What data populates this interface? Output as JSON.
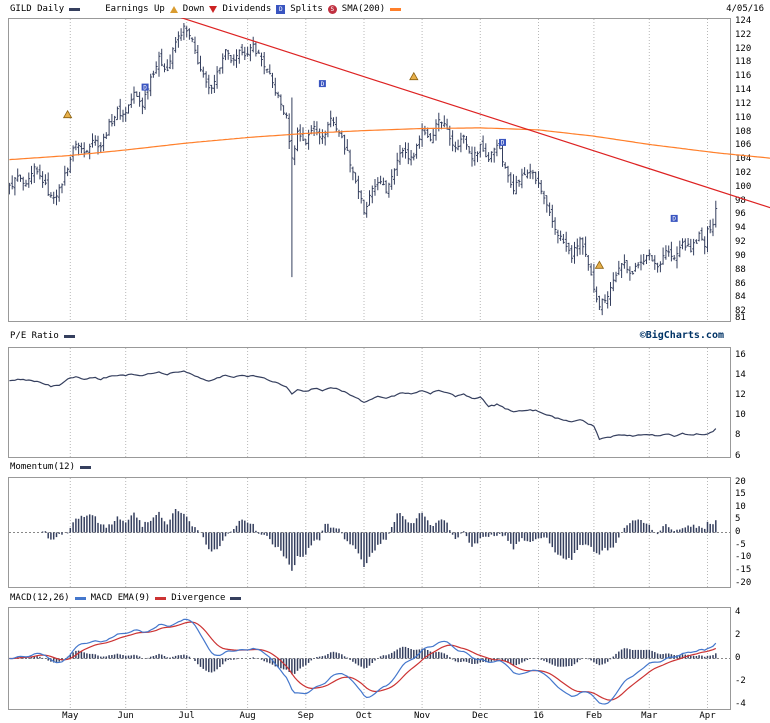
{
  "header": {
    "symbol": "GILD Daily",
    "legend_earnings_up": "Earnings Up",
    "legend_down": "Down",
    "legend_dividends": "Dividends",
    "legend_dividends_icon": "D",
    "legend_splits": "Splits",
    "legend_splits_icon": "S",
    "legend_sma": "SMA(200)",
    "date": "4/05/16"
  },
  "copyright": "©BigCharts.com",
  "panel_titles": {
    "pe": "P/E Ratio",
    "momentum": "Momentum(12)",
    "macd": "MACD(12,26)",
    "macd_ema": "MACD EMA(9)",
    "divergence": "Divergence"
  },
  "colors": {
    "bars": "#353f5e",
    "sma": "#ff7f2a",
    "trendline": "#dd2222",
    "macd_line": "#4477cc",
    "macd_signal": "#cc3333",
    "grid": "#b8b8b8",
    "zero_line": "#888888",
    "border": "#999999",
    "dividend_marker": "#3a55c0",
    "earnings_marker": "#e8b04a",
    "earnings_marker_edge": "#8a6010"
  },
  "chart_data": {
    "type": "multi-panel daily stock chart (OHLC bars + indicator subcharts)",
    "symbol": "GILD",
    "interval": "Daily",
    "as_of": "4/05/16",
    "n_slots": 261,
    "months": [
      {
        "label": "May",
        "i": 22
      },
      {
        "label": "Jun",
        "i": 42
      },
      {
        "label": "Jul",
        "i": 64
      },
      {
        "label": "Aug",
        "i": 86
      },
      {
        "label": "Sep",
        "i": 107
      },
      {
        "label": "Oct",
        "i": 128
      },
      {
        "label": "Nov",
        "i": 149
      },
      {
        "label": "Dec",
        "i": 170
      },
      {
        "label": "16",
        "i": 191
      },
      {
        "label": "Feb",
        "i": 211
      },
      {
        "label": "Mar",
        "i": 231
      },
      {
        "label": "Apr",
        "i": 252
      }
    ],
    "price": {
      "type": "ohlc",
      "ylim": [
        80.5,
        124.5
      ],
      "yticks": [
        124,
        122,
        120,
        118,
        116,
        114,
        112,
        110,
        108,
        106,
        104,
        102,
        100,
        98,
        96,
        94,
        92,
        90,
        88,
        86,
        84,
        82,
        81
      ],
      "close_keypoints": [
        [
          0,
          100
        ],
        [
          3,
          101.5
        ],
        [
          6,
          100
        ],
        [
          9,
          102.5
        ],
        [
          12,
          101
        ],
        [
          15,
          98.5
        ],
        [
          18,
          99.5
        ],
        [
          21,
          103
        ],
        [
          24,
          106.5
        ],
        [
          27,
          105
        ],
        [
          30,
          107
        ],
        [
          33,
          106
        ],
        [
          36,
          109
        ],
        [
          39,
          111
        ],
        [
          41,
          110.5
        ],
        [
          42,
          111
        ],
        [
          45,
          113.5
        ],
        [
          48,
          112
        ],
        [
          51,
          116
        ],
        [
          54,
          118.5
        ],
        [
          57,
          117
        ],
        [
          60,
          121
        ],
        [
          63,
          123
        ],
        [
          64,
          122.5
        ],
        [
          66,
          121
        ],
        [
          69,
          117
        ],
        [
          72,
          114
        ],
        [
          75,
          116.5
        ],
        [
          78,
          119.5
        ],
        [
          81,
          118
        ],
        [
          84,
          120
        ],
        [
          86,
          119
        ],
        [
          88,
          120.5
        ],
        [
          91,
          118.5
        ],
        [
          94,
          116
        ],
        [
          97,
          113
        ],
        [
          100,
          110
        ],
        [
          102,
          104
        ],
        [
          104,
          108
        ],
        [
          107,
          106.5
        ],
        [
          110,
          109
        ],
        [
          113,
          107
        ],
        [
          116,
          110
        ],
        [
          119,
          108
        ],
        [
          122,
          105
        ],
        [
          125,
          101
        ],
        [
          127,
          98
        ],
        [
          128,
          96
        ],
        [
          130,
          98.5
        ],
        [
          133,
          101
        ],
        [
          136,
          99.5
        ],
        [
          139,
          103
        ],
        [
          142,
          105.5
        ],
        [
          145,
          104
        ],
        [
          148,
          107
        ],
        [
          149,
          108.5
        ],
        [
          152,
          107
        ],
        [
          155,
          110
        ],
        [
          158,
          108.5
        ],
        [
          161,
          105.5
        ],
        [
          164,
          107.5
        ],
        [
          167,
          104.5
        ],
        [
          169,
          105
        ],
        [
          170,
          106
        ],
        [
          173,
          104
        ],
        [
          176,
          106.5
        ],
        [
          179,
          102.5
        ],
        [
          182,
          100
        ],
        [
          185,
          101.5
        ],
        [
          188,
          102.5
        ],
        [
          190,
          101
        ],
        [
          191,
          100.5
        ],
        [
          194,
          97
        ],
        [
          197,
          94
        ],
        [
          200,
          92
        ],
        [
          203,
          90
        ],
        [
          206,
          92.5
        ],
        [
          209,
          88.5
        ],
        [
          211,
          85.5
        ],
        [
          213,
          83
        ],
        [
          216,
          84.5
        ],
        [
          219,
          87.5
        ],
        [
          222,
          89
        ],
        [
          225,
          87.5
        ],
        [
          228,
          89.5
        ],
        [
          231,
          90
        ],
        [
          234,
          88.5
        ],
        [
          237,
          91
        ],
        [
          240,
          89.5
        ],
        [
          243,
          92
        ],
        [
          246,
          91
        ],
        [
          249,
          93
        ],
        [
          251,
          91.5
        ],
        [
          252,
          93.5
        ],
        [
          254,
          95
        ],
        [
          255,
          97
        ]
      ],
      "sma200_keypoints": [
        [
          0,
          104
        ],
        [
          22,
          104.6
        ],
        [
          42,
          105.4
        ],
        [
          64,
          106.4
        ],
        [
          86,
          107.2
        ],
        [
          107,
          107.8
        ],
        [
          128,
          108.2
        ],
        [
          149,
          108.5
        ],
        [
          170,
          108.6
        ],
        [
          191,
          108.3
        ],
        [
          211,
          107.4
        ],
        [
          231,
          106.2
        ],
        [
          255,
          105
        ],
        [
          275,
          104.2
        ]
      ],
      "trendline": {
        "from": [
          57,
          125.2
        ],
        "to": [
          275,
          97
        ]
      },
      "crash_bar": {
        "i": 102,
        "high": 113,
        "low": 87
      },
      "dividends": [
        {
          "i": 49,
          "price": 114.5
        },
        {
          "i": 113,
          "price": 115
        },
        {
          "i": 178,
          "price": 106.5
        },
        {
          "i": 240,
          "price": 95.5
        }
      ],
      "earnings_up": [
        {
          "i": 21,
          "price": 110.5
        },
        {
          "i": 146,
          "price": 116
        },
        {
          "i": 213,
          "price": 88.7
        }
      ]
    },
    "pe_ratio": {
      "type": "line",
      "ylim": [
        5.8,
        16.8
      ],
      "yticks": [
        16,
        14,
        12,
        10,
        8,
        6
      ],
      "keypoints": [
        [
          0,
          13.4
        ],
        [
          4,
          13.6
        ],
        [
          8,
          13.5
        ],
        [
          12,
          13.2
        ],
        [
          15,
          12.9
        ],
        [
          18,
          13.0
        ],
        [
          21,
          13.6
        ],
        [
          24,
          13.9
        ],
        [
          27,
          13.6
        ],
        [
          30,
          13.8
        ],
        [
          33,
          13.6
        ],
        [
          36,
          13.9
        ],
        [
          40,
          14.0
        ],
        [
          42,
          14.0
        ],
        [
          45,
          14.1
        ],
        [
          48,
          13.9
        ],
        [
          51,
          14.2
        ],
        [
          54,
          14.3
        ],
        [
          57,
          14.1
        ],
        [
          60,
          14.3
        ],
        [
          63,
          14.4
        ],
        [
          64,
          14.3
        ],
        [
          66,
          14.1
        ],
        [
          69,
          13.7
        ],
        [
          72,
          13.4
        ],
        [
          75,
          13.7
        ],
        [
          78,
          14.0
        ],
        [
          81,
          13.8
        ],
        [
          84,
          14.0
        ],
        [
          86,
          13.9
        ],
        [
          88,
          14.0
        ],
        [
          91,
          13.8
        ],
        [
          94,
          13.5
        ],
        [
          97,
          13.2
        ],
        [
          100,
          12.9
        ],
        [
          102,
          12.1
        ],
        [
          104,
          12.6
        ],
        [
          107,
          12.4
        ],
        [
          110,
          12.7
        ],
        [
          113,
          12.5
        ],
        [
          116,
          12.8
        ],
        [
          119,
          12.6
        ],
        [
          122,
          12.2
        ],
        [
          125,
          11.8
        ],
        [
          127,
          11.5
        ],
        [
          128,
          11.3
        ],
        [
          130,
          11.6
        ],
        [
          133,
          11.9
        ],
        [
          136,
          11.7
        ],
        [
          139,
          12.0
        ],
        [
          142,
          12.3
        ],
        [
          145,
          12.1
        ],
        [
          148,
          12.4
        ],
        [
          149,
          12.5
        ],
        [
          152,
          12.2
        ],
        [
          155,
          12.5
        ],
        [
          158,
          12.3
        ],
        [
          161,
          11.9
        ],
        [
          164,
          12.1
        ],
        [
          167,
          11.7
        ],
        [
          169,
          11.8
        ],
        [
          170,
          11.9
        ],
        [
          173,
          10.9
        ],
        [
          176,
          11.1
        ],
        [
          179,
          10.7
        ],
        [
          182,
          10.4
        ],
        [
          185,
          10.5
        ],
        [
          188,
          10.6
        ],
        [
          190,
          10.5
        ],
        [
          191,
          10.4
        ],
        [
          194,
          10.1
        ],
        [
          197,
          9.8
        ],
        [
          200,
          9.6
        ],
        [
          203,
          9.4
        ],
        [
          206,
          9.6
        ],
        [
          209,
          9.2
        ],
        [
          211,
          8.9
        ],
        [
          213,
          7.7
        ],
        [
          216,
          7.8
        ],
        [
          219,
          8.0
        ],
        [
          222,
          8.1
        ],
        [
          225,
          8.0
        ],
        [
          228,
          8.1
        ],
        [
          231,
          8.1
        ],
        [
          234,
          8.0
        ],
        [
          237,
          8.2
        ],
        [
          240,
          8.0
        ],
        [
          243,
          8.2
        ],
        [
          246,
          8.1
        ],
        [
          249,
          8.2
        ],
        [
          251,
          8.1
        ],
        [
          252,
          8.2
        ],
        [
          254,
          8.4
        ],
        [
          255,
          8.7
        ]
      ]
    },
    "momentum": {
      "type": "bar",
      "derived": "close[i] - close[i-12]",
      "period": 12,
      "ylim": [
        -22,
        22
      ],
      "yticks": [
        20,
        15,
        10,
        5,
        0,
        -5,
        -10,
        -15,
        -20
      ]
    },
    "macd": {
      "type": "macd",
      "fast": 12,
      "slow": 26,
      "signal": 9,
      "ylim": [
        -4.5,
        4.5
      ],
      "yticks": [
        4,
        2,
        0,
        -2,
        -4
      ]
    }
  }
}
